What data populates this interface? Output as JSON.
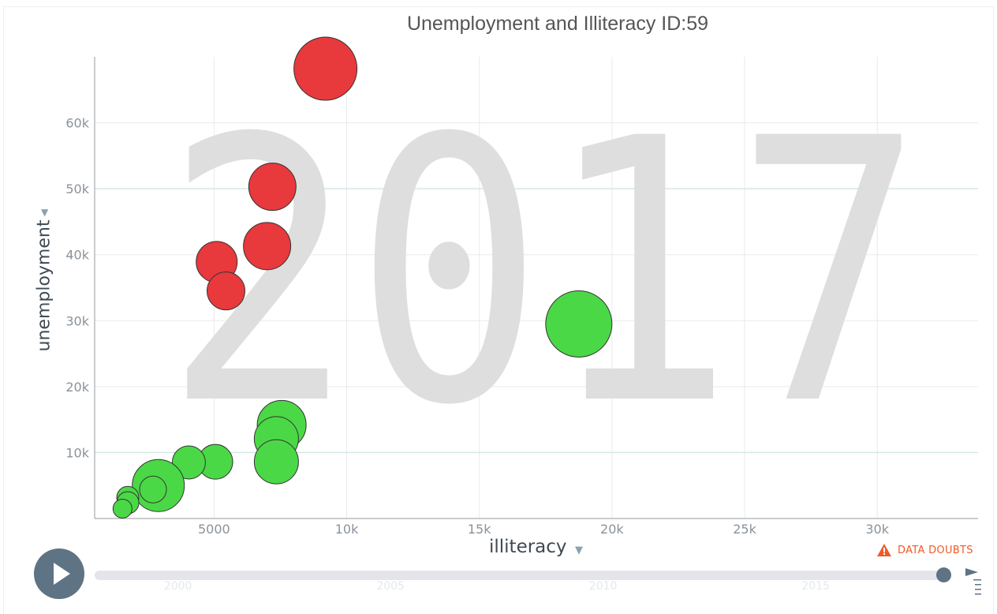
{
  "title": "Unemployment and Illiteracy ID:59",
  "chart_data": {
    "type": "scatter",
    "title": "Unemployment and Illiteracy ID:59",
    "xlabel": "illiteracy",
    "ylabel": "unemployment",
    "xlim": [
      500,
      33800
    ],
    "ylim": [
      0,
      70000
    ],
    "x_ticks": [
      "5000",
      "10k",
      "15k",
      "20k",
      "25k",
      "30k"
    ],
    "y_ticks": [
      "10k",
      "20k",
      "30k",
      "40k",
      "50k",
      "60k"
    ],
    "year_watermark": "2017",
    "grid": true,
    "point_size_unit": "relative",
    "points": [
      {
        "x": 9200,
        "y": 68200,
        "size": 40,
        "color": "#e8393c"
      },
      {
        "x": 7200,
        "y": 50300,
        "size": 30,
        "color": "#e8393c"
      },
      {
        "x": 7000,
        "y": 41300,
        "size": 30,
        "color": "#e8393c"
      },
      {
        "x": 5100,
        "y": 38900,
        "size": 26,
        "color": "#e8393c"
      },
      {
        "x": 5450,
        "y": 34500,
        "size": 24,
        "color": "#e8393c"
      },
      {
        "x": 18750,
        "y": 29500,
        "size": 42,
        "color": "#4bd846"
      },
      {
        "x": 7550,
        "y": 14200,
        "size": 31,
        "color": "#4bd846"
      },
      {
        "x": 7350,
        "y": 12100,
        "size": 28,
        "color": "#4bd846"
      },
      {
        "x": 7350,
        "y": 8600,
        "size": 28,
        "color": "#4bd846"
      },
      {
        "x": 5050,
        "y": 8600,
        "size": 22,
        "color": "#4bd846"
      },
      {
        "x": 4050,
        "y": 8500,
        "size": 21,
        "color": "#4bd846"
      },
      {
        "x": 2900,
        "y": 5000,
        "size": 33,
        "color": "#4bd846"
      },
      {
        "x": 2700,
        "y": 4400,
        "size": 17,
        "color": "#4bd846"
      },
      {
        "x": 1750,
        "y": 3200,
        "size": 14,
        "color": "#4bd846"
      },
      {
        "x": 1750,
        "y": 2400,
        "size": 14,
        "color": "#4bd846"
      },
      {
        "x": 1550,
        "y": 1500,
        "size": 12,
        "color": "#4bd846"
      }
    ]
  },
  "controls": {
    "data_doubts": "DATA DOUBTS",
    "timeline_ticks": [
      "2000",
      "2005",
      "2010",
      "2015"
    ],
    "timeline_range": [
      1998,
      2018
    ],
    "current_year": 2017
  },
  "colors": {
    "red": "#e8393c",
    "green": "#4bd846",
    "accent": "#f05a28",
    "control": "#5e7384"
  }
}
